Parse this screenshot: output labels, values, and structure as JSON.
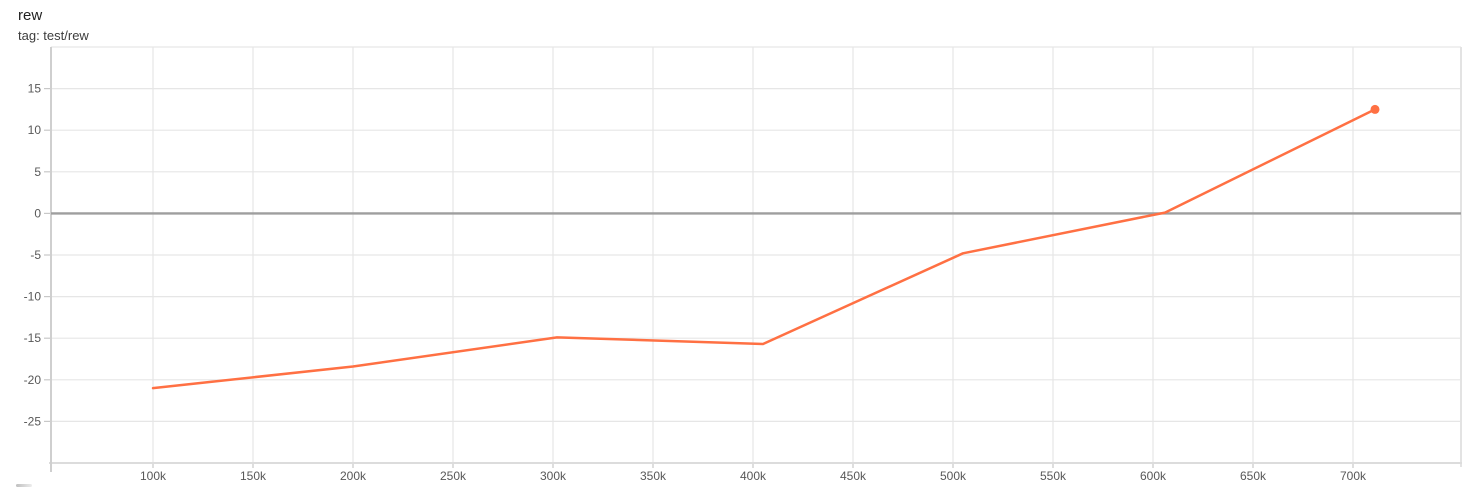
{
  "header": {
    "title": "rew",
    "subtitle": "tag: test/rew"
  },
  "colors": {
    "background": "#ffffff",
    "series": "#ff7043",
    "grid": "#e6e6e6",
    "axis_line": "#cfcfcf",
    "baseline": "#dcdcdc",
    "right_border": "#e3e3e3",
    "zero_line": "#9e9e9e",
    "tick": "#c8c8c8",
    "tick_label": "#585858",
    "title": "#212121",
    "subtitle": "#3d3d3d"
  },
  "chart_data": {
    "type": "line",
    "title": "rew",
    "subtitle": "tag: test/rew",
    "xlabel": "",
    "ylabel": "",
    "grid": true,
    "legend": "none",
    "xlim": [
      49000,
      754000
    ],
    "ylim": [
      -30,
      20
    ],
    "zero_line_value": 0,
    "x_ticks": [
      {
        "value": 100000,
        "label": "100k"
      },
      {
        "value": 150000,
        "label": "150k"
      },
      {
        "value": 200000,
        "label": "200k"
      },
      {
        "value": 250000,
        "label": "250k"
      },
      {
        "value": 300000,
        "label": "300k"
      },
      {
        "value": 350000,
        "label": "350k"
      },
      {
        "value": 400000,
        "label": "400k"
      },
      {
        "value": 450000,
        "label": "450k"
      },
      {
        "value": 500000,
        "label": "500k"
      },
      {
        "value": 550000,
        "label": "550k"
      },
      {
        "value": 600000,
        "label": "600k"
      },
      {
        "value": 650000,
        "label": "650k"
      },
      {
        "value": 700000,
        "label": "700k"
      }
    ],
    "y_ticks": [
      {
        "value": 20,
        "label": ""
      },
      {
        "value": 15,
        "label": "15"
      },
      {
        "value": 10,
        "label": "10"
      },
      {
        "value": 5,
        "label": "5"
      },
      {
        "value": 0,
        "label": "0"
      },
      {
        "value": -5,
        "label": "-5"
      },
      {
        "value": -10,
        "label": "-10"
      },
      {
        "value": -15,
        "label": "-15"
      },
      {
        "value": -20,
        "label": "-20"
      },
      {
        "value": -25,
        "label": "-25"
      }
    ],
    "series": [
      {
        "name": "test/rew",
        "color": "#ff7043",
        "end_marker": true,
        "points": [
          {
            "x": 100000,
            "y": -21.0
          },
          {
            "x": 200000,
            "y": -18.4
          },
          {
            "x": 302000,
            "y": -14.9
          },
          {
            "x": 405000,
            "y": -15.7
          },
          {
            "x": 505000,
            "y": -4.8
          },
          {
            "x": 606000,
            "y": 0.1
          },
          {
            "x": 711000,
            "y": 12.5
          }
        ]
      }
    ]
  }
}
